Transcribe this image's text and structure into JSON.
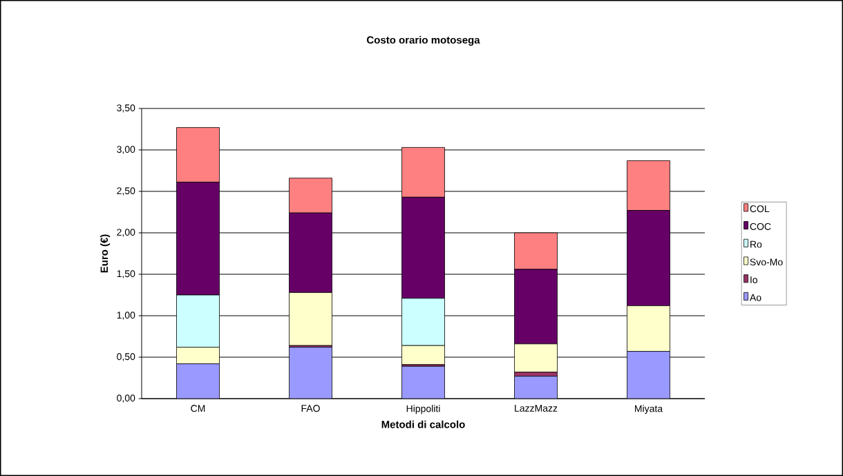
{
  "chart_data": {
    "type": "bar",
    "title": "Costo orario motosega",
    "xlabel": "Metodi di calcolo",
    "ylabel": "Euro (€)",
    "categories": [
      "CM",
      "FAO",
      "Hippoliti",
      "LazzMazz",
      "Miyata"
    ],
    "stacked": true,
    "series": [
      {
        "name": "Ao",
        "color": "#9999ff",
        "values": [
          0.42,
          0.62,
          0.39,
          0.27,
          0.57
        ]
      },
      {
        "name": "Io",
        "color": "#993366",
        "values": [
          null,
          0.02,
          0.02,
          0.05,
          null
        ]
      },
      {
        "name": "Svo-Mo",
        "color": "#ffffcc",
        "values": [
          0.2,
          0.64,
          0.23,
          0.34,
          0.55
        ]
      },
      {
        "name": "Ro",
        "color": "#ccffff",
        "values": [
          0.63,
          0,
          0.57,
          0,
          0
        ]
      },
      {
        "name": "COC",
        "color": "#660066",
        "values": [
          1.36,
          0.96,
          1.22,
          0.9,
          1.15
        ]
      },
      {
        "name": "COL",
        "color": "#ff8080",
        "values": [
          0.66,
          0.42,
          0.6,
          0.44,
          0.6
        ]
      }
    ],
    "ylim": [
      0,
      3.5
    ],
    "yticks": [
      {
        "value": 0,
        "label": "0,00"
      },
      {
        "value": 0.5,
        "label": "0,50"
      },
      {
        "value": 1,
        "label": "1,00"
      },
      {
        "value": 1.5,
        "label": "1,50"
      },
      {
        "value": 2,
        "label": "2,00"
      },
      {
        "value": 2.5,
        "label": "2,50"
      },
      {
        "value": 3,
        "label": "3,00"
      },
      {
        "value": 3.5,
        "label": "3,50"
      }
    ],
    "grid": "y",
    "legend": "right"
  }
}
